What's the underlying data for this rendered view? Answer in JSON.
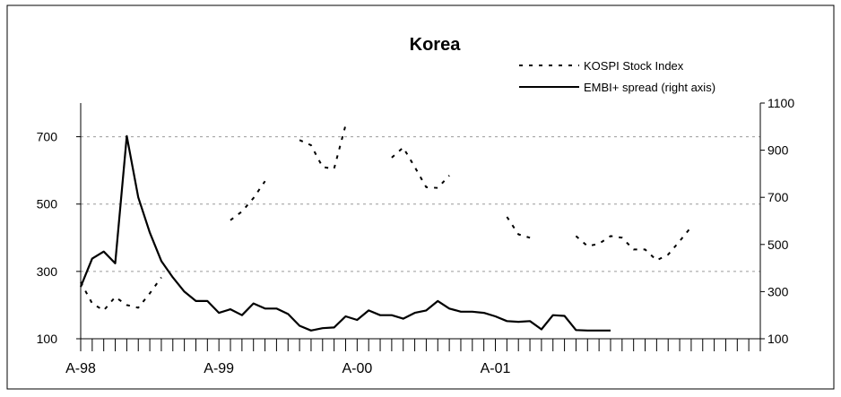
{
  "chart_data": {
    "type": "line",
    "title": "Korea",
    "legend_position": "top-right",
    "grid": true,
    "x_tick_labels": [
      "A-98",
      "A-99",
      "A-00",
      "A-01"
    ],
    "x_months": [
      "1998-04",
      "1998-05",
      "1998-06",
      "1998-07",
      "1998-08",
      "1998-09",
      "1998-10",
      "1998-11",
      "1998-12",
      "1999-01",
      "1999-02",
      "1999-03",
      "1999-04",
      "1999-05",
      "1999-06",
      "1999-07",
      "1999-08",
      "1999-09",
      "1999-10",
      "1999-11",
      "1999-12",
      "2000-01",
      "2000-02",
      "2000-03",
      "2000-04",
      "2000-05",
      "2000-06",
      "2000-07",
      "2000-08",
      "2000-09",
      "2000-10",
      "2000-11",
      "2000-12",
      "2001-01",
      "2001-02",
      "2001-03",
      "2001-04",
      "2001-05",
      "2001-06",
      "2001-07",
      "2001-08",
      "2001-09",
      "2001-10",
      "2001-11",
      "2001-12",
      "2002-01",
      "2002-02",
      "2002-03",
      "2002-04",
      "2002-05",
      "2002-06",
      "2002-07",
      "2002-08",
      "2002-09",
      "2002-10",
      "2002-11",
      "2002-12",
      "2003-01",
      "2003-02",
      "2003-03"
    ],
    "left_axis": {
      "ylim": [
        100,
        800
      ],
      "ticks": [
        100,
        300,
        500,
        700
      ]
    },
    "right_axis": {
      "ylim": [
        100,
        1100
      ],
      "ticks": [
        100,
        300,
        500,
        700,
        900,
        1100
      ]
    },
    "series": [
      {
        "name": "KOSPI Stock Index",
        "axis": "left",
        "style": "dotted",
        "color": "#000000",
        "values": [
          268,
          205,
          184,
          224,
          200,
          192,
          235,
          282,
          316,
          340,
          400,
          385,
          370,
          452,
          478,
          518,
          568,
          620,
          660,
          690,
          675,
          610,
          605,
          735,
          740,
          720,
          680,
          638,
          668,
          610,
          550,
          548,
          585,
          625,
          600,
          560,
          520,
          462,
          410,
          400,
          440,
          490,
          410,
          405,
          375,
          382,
          405,
          400,
          365,
          365,
          333,
          350,
          390,
          432,
          null,
          null,
          null,
          null,
          null,
          null
        ],
        "mask": [
          1,
          1,
          1,
          1,
          1,
          1,
          1,
          1,
          0,
          0,
          0,
          0,
          0,
          1,
          1,
          1,
          1,
          0,
          0,
          1,
          1,
          1,
          1,
          1,
          0,
          0,
          0,
          1,
          1,
          1,
          1,
          1,
          1,
          0,
          0,
          0,
          0,
          1,
          1,
          1,
          0,
          0,
          0,
          1,
          1,
          1,
          1,
          1,
          1,
          1,
          1,
          1,
          1,
          1,
          0,
          0,
          0,
          0,
          0,
          0
        ]
      },
      {
        "name": "EMBI+ spread (right axis)",
        "axis": "right",
        "style": "solid",
        "color": "#000000",
        "values": [
          320,
          440,
          470,
          420,
          960,
          700,
          550,
          430,
          360,
          300,
          260,
          260,
          210,
          225,
          200,
          250,
          228,
          228,
          205,
          155,
          135,
          145,
          148,
          195,
          180,
          220,
          200,
          200,
          185,
          210,
          220,
          260,
          228,
          215,
          215,
          210,
          195,
          175,
          172,
          175,
          140,
          200,
          197,
          137,
          135,
          135,
          135,
          null,
          null,
          null,
          null,
          null,
          null,
          null,
          null,
          null,
          null,
          null,
          null,
          null
        ]
      }
    ]
  }
}
